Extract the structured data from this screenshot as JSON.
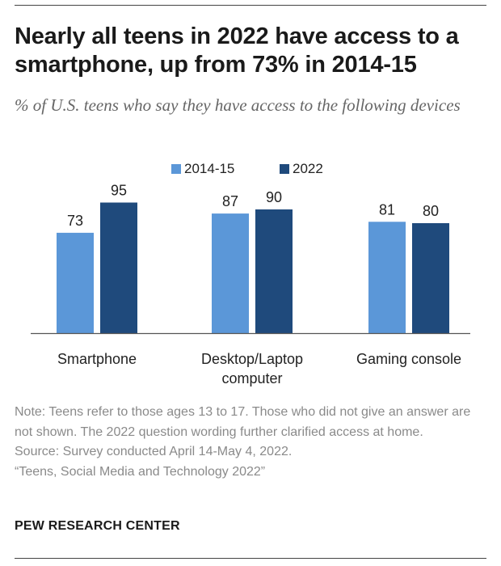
{
  "header": {
    "title": "Nearly all teens in 2022 have access to a smartphone, up from 73% in 2014-15",
    "subtitle": "% of U.S. teens who say they have access to the following devices"
  },
  "chart_data": {
    "type": "bar",
    "categories": [
      "Smartphone",
      "Desktop/Laptop computer",
      "Gaming console"
    ],
    "category_lines": [
      [
        "Smartphone"
      ],
      [
        "Desktop/Laptop",
        "computer"
      ],
      [
        "Gaming console"
      ]
    ],
    "series": [
      {
        "name": "2014-15",
        "values": [
          73,
          87,
          81
        ],
        "color": "#5b97d8"
      },
      {
        "name": "2022",
        "values": [
          95,
          90,
          80
        ],
        "color": "#1f4a7c"
      }
    ],
    "ylim": [
      0,
      100
    ],
    "legend_position": "top",
    "grid": false,
    "data_labels": true,
    "title": "",
    "xlabel": "",
    "ylabel": ""
  },
  "notes": {
    "note": "Note: Teens refer to those ages 13 to 17. Those who did not give an answer are not shown. The 2022 question wording further clarified access at home.",
    "source": "Source: Survey conducted April 14-May 4, 2022.",
    "report": "“Teens, Social Media and Technology 2022”"
  },
  "footer": {
    "org": "PEW RESEARCH CENTER"
  }
}
